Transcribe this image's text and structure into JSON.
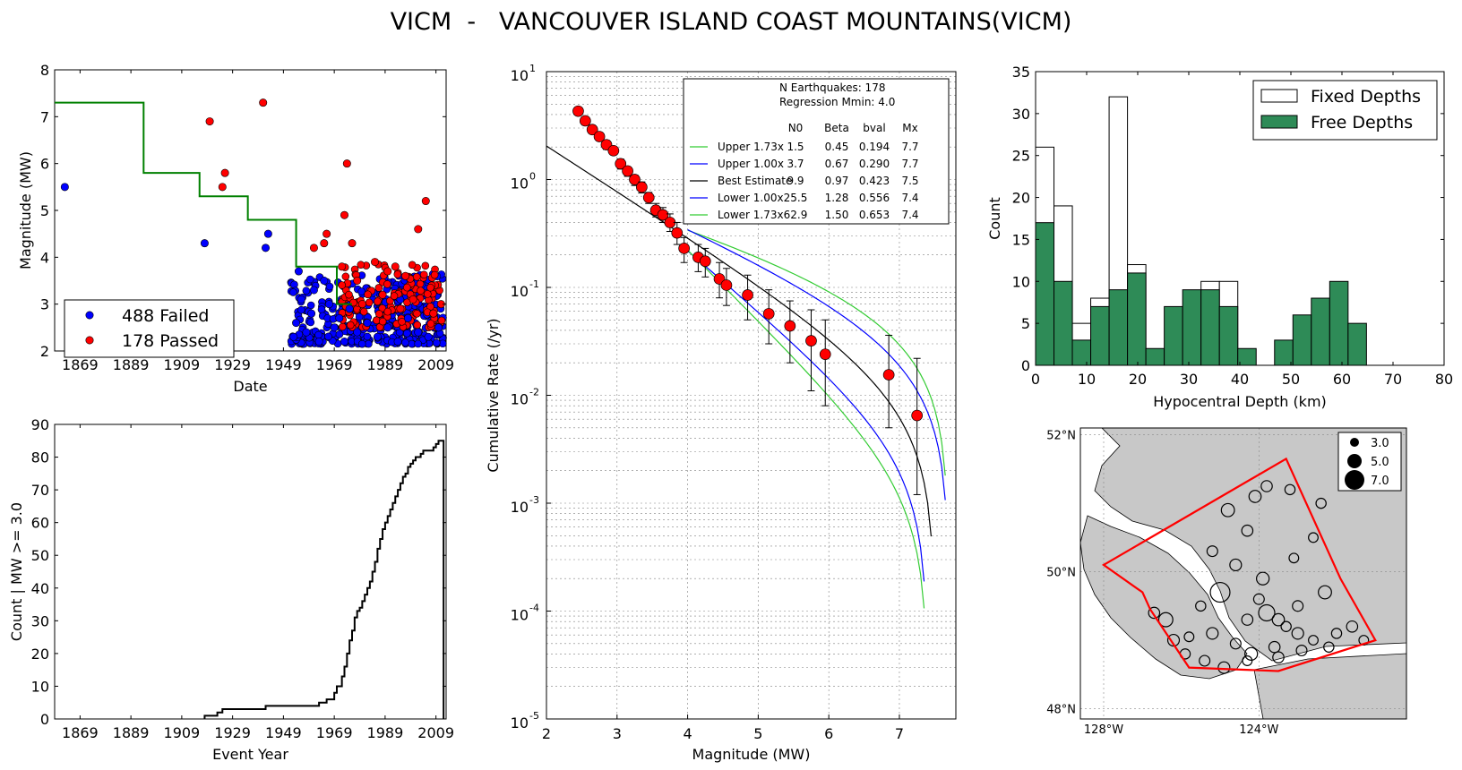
{
  "title": "VICM  -   VANCOUVER ISLAND COAST MOUNTAINS(VICM)",
  "chart_data": [
    {
      "type": "scatter",
      "id": "magnitude_time",
      "xlabel": "Date",
      "ylabel": "Magnitude (MW)",
      "xlim": [
        1859,
        2013
      ],
      "ylim": [
        2,
        8
      ],
      "xticks": [
        1869,
        1889,
        1909,
        1929,
        1949,
        1969,
        1989,
        2009
      ],
      "yticks": [
        2,
        3,
        4,
        5,
        6,
        7,
        8
      ],
      "legend_position": "lower-left",
      "series": [
        {
          "name": "488 Failed",
          "color": "#0000ff",
          "points": [
            [
              1863,
              5.5
            ],
            [
              1918,
              4.3
            ],
            [
              1927,
              3.0
            ],
            [
              1943,
              4.5
            ],
            [
              1942,
              4.2
            ],
            [
              1955,
              3.7
            ],
            [
              1953,
              2.3
            ],
            [
              1954,
              2.6
            ],
            [
              1956,
              3.1
            ],
            [
              1958,
              2.4
            ],
            [
              1960,
              2.8
            ],
            [
              1961,
              3.3
            ],
            [
              1963,
              2.2
            ],
            [
              1965,
              3.5
            ],
            [
              1967,
              3.0
            ],
            [
              1969,
              2.5
            ],
            [
              1971,
              2.7
            ],
            [
              1973,
              2.2
            ],
            [
              1975,
              2.9
            ],
            [
              1978,
              2.4
            ],
            [
              1982,
              2.6
            ],
            [
              1986,
              2.3
            ],
            [
              1990,
              2.5
            ],
            [
              1994,
              2.2
            ],
            [
              1998,
              2.7
            ],
            [
              2002,
              2.4
            ],
            [
              2006,
              2.3
            ],
            [
              2010,
              2.5
            ]
          ]
        },
        {
          "name": "178 Passed",
          "color": "#ff0000",
          "points": [
            [
              1920,
              6.9
            ],
            [
              1941,
              7.3
            ],
            [
              1926,
              5.8
            ],
            [
              1925,
              5.5
            ],
            [
              1961,
              4.2
            ],
            [
              1966,
              4.5
            ],
            [
              1965,
              4.3
            ],
            [
              1973,
              4.9
            ],
            [
              1974,
              6.0
            ],
            [
              1976,
              4.3
            ],
            [
              1972,
              3.8
            ],
            [
              1978,
              3.5
            ],
            [
              1985,
              3.9
            ],
            [
              1990,
              3.7
            ],
            [
              1993,
              3.8
            ],
            [
              1997,
              3.6
            ],
            [
              2002,
              4.6
            ],
            [
              2005,
              5.2
            ],
            [
              2000,
              3.1
            ],
            [
              1980,
              3.0
            ],
            [
              1988,
              3.2
            ],
            [
              1995,
              2.9
            ],
            [
              2008,
              2.8
            ],
            [
              2011,
              3.0
            ]
          ]
        }
      ],
      "completeness_step": {
        "color": "#008000",
        "x": [
          1859,
          1894,
          1894,
          1916,
          1916,
          1935,
          1935,
          1954,
          1954,
          1970,
          1970,
          1976
        ],
        "y": [
          7.3,
          7.3,
          5.8,
          5.8,
          5.3,
          5.3,
          4.8,
          4.8,
          3.8,
          3.8,
          3.0,
          3.0
        ]
      }
    },
    {
      "type": "line",
      "id": "cumulative_count",
      "xlabel": "Event Year",
      "ylabel": "Count | MW >= 3.0",
      "xlim": [
        1859,
        2013
      ],
      "ylim": [
        0,
        90
      ],
      "xticks": [
        1869,
        1889,
        1909,
        1929,
        1949,
        1969,
        1989,
        2009
      ],
      "yticks": [
        0,
        10,
        20,
        30,
        40,
        50,
        60,
        70,
        80,
        90
      ],
      "x": [
        1918,
        1923,
        1925,
        1926,
        1942,
        1963,
        1966,
        1969,
        1970,
        1972,
        1973,
        1974,
        1975,
        1976,
        1977,
        1978,
        1979,
        1980,
        1981,
        1982,
        1983,
        1984,
        1985,
        1986,
        1987,
        1988,
        1989,
        1990,
        1991,
        1992,
        1993,
        1994,
        1995,
        1996,
        1997,
        1998,
        1999,
        2000,
        2001,
        2002,
        2003,
        2004,
        2005,
        2006,
        2007,
        2008,
        2009,
        2010,
        2011,
        2012
      ],
      "y": [
        1,
        2,
        3,
        3,
        4,
        5,
        6,
        8,
        10,
        13,
        16,
        20,
        24,
        27,
        31,
        33,
        34,
        36,
        38,
        40,
        42,
        45,
        48,
        52,
        55,
        58,
        60,
        62,
        64,
        66,
        68,
        70,
        72,
        74,
        75,
        77,
        78,
        79,
        80,
        80,
        81,
        82,
        82,
        82,
        82,
        83,
        84,
        85,
        85,
        0
      ]
    },
    {
      "type": "line",
      "id": "recurrence",
      "xlabel": "Magnitude (MW)",
      "ylabel": "Cumulative Rate (/yr)",
      "xlim": [
        2,
        7.8
      ],
      "ylim_log10": [
        -5,
        1
      ],
      "xticks": [
        2,
        3,
        4,
        5,
        6,
        7
      ],
      "ytick_mantissa": "10",
      "ytick_exponents": [
        "1",
        "0",
        "-1",
        "-2",
        "-3",
        "-4",
        "-5"
      ],
      "legend_header": [
        "N Earthquakes: 178",
        "Regression Mmin: 4.0"
      ],
      "legend_columns": [
        "N0",
        "Beta",
        "bval",
        "Mx"
      ],
      "observed": {
        "color": "#ff0000",
        "mag": [
          2.45,
          2.55,
          2.65,
          2.75,
          2.85,
          2.95,
          3.05,
          3.15,
          3.25,
          3.35,
          3.45,
          3.55,
          3.65,
          3.75,
          3.85,
          3.95,
          4.15,
          4.25,
          4.45,
          4.55,
          4.85,
          5.15,
          5.45,
          5.75,
          5.95,
          6.85,
          7.25
        ],
        "rate": [
          4.3,
          3.5,
          2.9,
          2.5,
          2.1,
          1.85,
          1.4,
          1.2,
          1.0,
          0.85,
          0.68,
          0.52,
          0.47,
          0.4,
          0.32,
          0.23,
          0.19,
          0.175,
          0.12,
          0.105,
          0.085,
          0.057,
          0.044,
          0.032,
          0.024,
          0.0155,
          0.0065
        ],
        "err_hi": [
          4.6,
          3.8,
          3.1,
          2.7,
          2.3,
          2.0,
          1.55,
          1.3,
          1.1,
          0.95,
          0.76,
          0.6,
          0.55,
          0.48,
          0.4,
          0.29,
          0.25,
          0.23,
          0.17,
          0.15,
          0.13,
          0.095,
          0.075,
          0.062,
          0.05,
          0.036,
          0.022
        ],
        "err_lo": [
          4.0,
          3.2,
          2.7,
          2.3,
          1.9,
          1.7,
          1.25,
          1.07,
          0.88,
          0.75,
          0.6,
          0.45,
          0.4,
          0.33,
          0.25,
          0.17,
          0.14,
          0.125,
          0.08,
          0.068,
          0.05,
          0.03,
          0.02,
          0.011,
          0.008,
          0.005,
          0.0012
        ]
      },
      "series": [
        {
          "name": "Upper 1.73x",
          "color": "#33cc33",
          "N0": "1.5",
          "Beta": "0.45",
          "bval": "0.194",
          "Mx": "7.7",
          "beta_num": 0.45,
          "a": 2.53,
          "mx_num": 7.7,
          "m_start": 4.0
        },
        {
          "name": "Upper 1.00x",
          "color": "#0000ff",
          "N0": "3.7",
          "Beta": "0.67",
          "bval": "0.290",
          "Mx": "7.7",
          "beta_num": 0.67,
          "a": 5.45,
          "mx_num": 7.7,
          "m_start": 4.0
        },
        {
          "name": "Best Estimate",
          "color": "#000000",
          "N0": "9.9",
          "Beta": "0.97",
          "bval": "0.423",
          "Mx": "7.5",
          "beta_num": 0.97,
          "a": 14.3,
          "mx_num": 7.5,
          "m_start": 2.0
        },
        {
          "name": "Lower 1.00x",
          "color": "#0000ff",
          "N0": "25.5",
          "Beta": "1.28",
          "bval": "0.556",
          "Mx": "7.4",
          "beta_num": 1.28,
          "a": 37.0,
          "mx_num": 7.4,
          "m_start": 4.0
        },
        {
          "name": "Lower 1.73x",
          "color": "#33cc33",
          "N0": "62.9",
          "Beta": "1.50",
          "bval": "0.653",
          "Mx": "7.4",
          "beta_num": 1.5,
          "a": 90.0,
          "mx_num": 7.4,
          "m_start": 4.0
        }
      ]
    },
    {
      "type": "bar",
      "id": "depth_histogram",
      "xlabel": "Hypocentral Depth (km)",
      "ylabel": "Count",
      "xlim": [
        0,
        80
      ],
      "ylim": [
        0,
        35
      ],
      "xticks": [
        0,
        10,
        20,
        30,
        40,
        50,
        60,
        70,
        80
      ],
      "yticks": [
        0,
        5,
        10,
        15,
        20,
        25,
        30,
        35
      ],
      "bin_width": 3.6,
      "legend_position": "top-right",
      "series": [
        {
          "name": "Fixed Depths",
          "color": "#ffffff",
          "values": [
            26,
            19,
            5,
            8,
            32,
            12,
            0,
            0,
            0,
            10,
            10,
            0,
            0,
            0,
            0,
            0,
            0,
            0,
            0,
            0
          ]
        },
        {
          "name": "Free Depths",
          "color": "#2e8b57",
          "values": [
            17,
            10,
            3,
            7,
            9,
            11,
            2,
            7,
            9,
            9,
            7,
            2,
            0,
            3,
            6,
            8,
            10,
            5,
            0,
            0
          ]
        }
      ]
    },
    {
      "type": "scatter",
      "id": "epicenter_map",
      "lon_range": [
        -128.6,
        -120.2
      ],
      "lat_range": [
        47.85,
        52.1
      ],
      "lat_labels": [
        "52°N",
        "50°N",
        "48°N"
      ],
      "lon_labels": [
        "128°W",
        "124°W"
      ],
      "size_legend": [
        "3.0",
        "5.0",
        "7.0"
      ],
      "polygon_color": "#ff0000",
      "polygon": [
        [
          -123.3,
          51.65
        ],
        [
          -121.9,
          49.9
        ],
        [
          -121.0,
          49.0
        ],
        [
          -123.5,
          48.55
        ],
        [
          -125.8,
          48.6
        ],
        [
          -126.8,
          49.45
        ],
        [
          -127.0,
          49.7
        ],
        [
          -128.0,
          50.1
        ]
      ],
      "events": [
        [
          -123.8,
          51.25,
          3.5
        ],
        [
          -124.1,
          51.1,
          3.7
        ],
        [
          -124.8,
          50.9,
          3.9
        ],
        [
          -123.2,
          51.2,
          3.3
        ],
        [
          -124.3,
          50.6,
          3.5
        ],
        [
          -122.6,
          50.5,
          3.2
        ],
        [
          -125.2,
          50.3,
          3.4
        ],
        [
          -124.6,
          50.1,
          3.6
        ],
        [
          -123.9,
          49.9,
          3.8
        ],
        [
          -125.0,
          49.7,
          5.2
        ],
        [
          -124.0,
          49.6,
          3.4
        ],
        [
          -123.8,
          49.4,
          4.5
        ],
        [
          -123.5,
          49.3,
          3.7
        ],
        [
          -123.3,
          49.2,
          3.3
        ],
        [
          -123.0,
          49.1,
          3.6
        ],
        [
          -122.6,
          49.0,
          3.2
        ],
        [
          -122.2,
          48.9,
          3.3
        ],
        [
          -123.6,
          48.9,
          3.5
        ],
        [
          -124.2,
          48.8,
          3.8
        ],
        [
          -124.6,
          48.95,
          3.4
        ],
        [
          -125.2,
          49.1,
          3.6
        ],
        [
          -125.8,
          49.05,
          3.2
        ],
        [
          -126.4,
          49.3,
          4.1
        ],
        [
          -126.7,
          49.4,
          3.5
        ],
        [
          -125.9,
          48.8,
          3.3
        ],
        [
          -125.4,
          48.7,
          3.4
        ],
        [
          -124.9,
          48.6,
          3.6
        ],
        [
          -124.3,
          48.7,
          3.2
        ],
        [
          -123.5,
          48.75,
          3.5
        ],
        [
          -122.9,
          48.85,
          3.4
        ],
        [
          -122.0,
          49.1,
          3.3
        ],
        [
          -121.6,
          49.2,
          3.5
        ],
        [
          -121.3,
          49.0,
          3.2
        ],
        [
          -122.3,
          49.7,
          3.9
        ],
        [
          -123.0,
          49.5,
          3.4
        ],
        [
          -124.3,
          49.3,
          3.5
        ],
        [
          -125.5,
          49.5,
          3.3
        ],
        [
          -126.2,
          49.0,
          3.6
        ],
        [
          -123.1,
          50.2,
          3.2
        ],
        [
          -122.4,
          51.0,
          3.3
        ]
      ]
    }
  ]
}
